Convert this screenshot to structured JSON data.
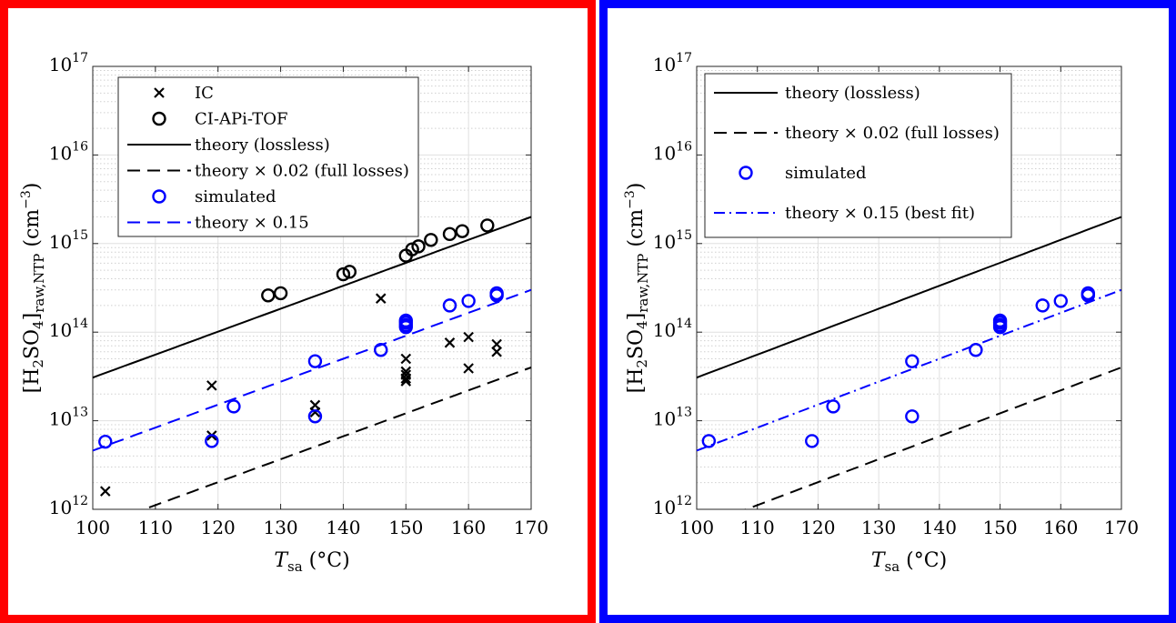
{
  "chart_data": [
    {
      "type": "scatter",
      "frame_color": "#ff0000",
      "xlabel": {
        "main": "T",
        "sub": "sa",
        "unit": "(°C)"
      },
      "ylabel": {
        "main": "[H",
        "sub1": "2",
        "mid": "SO",
        "sub2": "4",
        "close": "]",
        "sub3": "raw,NTP",
        "unit": "(cm",
        "sup": "−3",
        "end": ")"
      },
      "xlim": [
        100,
        170
      ],
      "ylim_log10": [
        12,
        17
      ],
      "y_scale": "log",
      "grid": true,
      "legend_position": "top-left",
      "xticks": [
        "100",
        "110",
        "120",
        "130",
        "140",
        "150",
        "160",
        "170"
      ],
      "xtick_values": [
        100,
        110,
        120,
        130,
        140,
        150,
        160,
        170
      ],
      "yticks": [
        {
          "base": "10",
          "exp": "12"
        },
        {
          "base": "10",
          "exp": "13"
        },
        {
          "base": "10",
          "exp": "14"
        },
        {
          "base": "10",
          "exp": "15"
        },
        {
          "base": "10",
          "exp": "16"
        },
        {
          "base": "10",
          "exp": "17"
        }
      ],
      "ytick_values": [
        12,
        13,
        14,
        15,
        16,
        17
      ],
      "series": [
        {
          "name": "IC",
          "kind": "x-marker",
          "color": "#000000",
          "points": [
            [
              102,
              1600000000000.0
            ],
            [
              119,
              25000000000000.0
            ],
            [
              119,
              6800000000000.0
            ],
            [
              135.5,
              15000000000000.0
            ],
            [
              135.5,
              12500000000000.0
            ],
            [
              146,
              240000000000000.0
            ],
            [
              150,
              50000000000000.0
            ],
            [
              150,
              36000000000000.0
            ],
            [
              150,
              33000000000000.0
            ],
            [
              150,
              30000000000000.0
            ],
            [
              150,
              28000000000000.0
            ],
            [
              157,
              76000000000000.0
            ],
            [
              160,
              88000000000000.0
            ],
            [
              160,
              39000000000000.0
            ],
            [
              164.5,
              73000000000000.0
            ],
            [
              164.5,
              60000000000000.0
            ]
          ]
        },
        {
          "name": "CI-APi-TOF",
          "kind": "circle",
          "color": "#000000",
          "points": [
            [
              128,
              260000000000000.0
            ],
            [
              130,
              275000000000000.0
            ],
            [
              140,
              450000000000000.0
            ],
            [
              141,
              480000000000000.0
            ],
            [
              150,
              730000000000000.0
            ],
            [
              151,
              860000000000000.0
            ],
            [
              152,
              930000000000000.0
            ],
            [
              154,
              1100000000000000.0
            ],
            [
              157,
              1280000000000000.0
            ],
            [
              159,
              1380000000000000.0
            ],
            [
              163,
              1600000000000000.0
            ]
          ]
        },
        {
          "name": "theory (lossless)",
          "kind": "solid-line",
          "color": "#000000"
        },
        {
          "name": "theory × 0.02 (full losses)",
          "kind": "dashed-line",
          "color": "#000000"
        },
        {
          "name": "simulated",
          "kind": "circle",
          "color": "#0000ff",
          "points": [
            [
              102,
              5800000000000.0
            ],
            [
              119,
              5900000000000.0
            ],
            [
              122.5,
              14500000000000.0
            ],
            [
              135.5,
              47000000000000.0
            ],
            [
              135.5,
              11200000000000.0
            ],
            [
              146,
              63000000000000.0
            ],
            [
              150,
              135000000000000.0
            ],
            [
              150,
              128000000000000.0
            ],
            [
              150,
              120000000000000.0
            ],
            [
              150,
              114000000000000.0
            ],
            [
              157,
              200000000000000.0
            ],
            [
              160,
              225000000000000.0
            ],
            [
              164.5,
              275000000000000.0
            ],
            [
              164.5,
              260000000000000.0
            ]
          ]
        },
        {
          "name": "theory × 0.15",
          "kind": "dashed-line",
          "color": "#0000ff"
        }
      ],
      "curves": {
        "theory": {
          "x": [
            100,
            170
          ],
          "log10_y": [
            13.487,
            15.301
          ]
        },
        "full_losses_factor": 0.02,
        "fit_factor": 0.15
      },
      "legend": [
        "IC",
        "CI-APi-TOF",
        "theory (lossless)",
        "theory × 0.02 (full losses)",
        "simulated",
        "theory × 0.15"
      ]
    },
    {
      "type": "scatter",
      "frame_color": "#0000ff",
      "xlabel": {
        "main": "T",
        "sub": "sa",
        "unit": "(°C)"
      },
      "ylabel": {
        "main": "[H",
        "sub1": "2",
        "mid": "SO",
        "sub2": "4",
        "close": "]",
        "sub3": "raw,NTP",
        "unit": "(cm",
        "sup": "−3",
        "end": ")"
      },
      "xlim": [
        100,
        170
      ],
      "ylim_log10": [
        12,
        17
      ],
      "y_scale": "log",
      "grid": true,
      "legend_position": "top-left",
      "xticks": [
        "100",
        "110",
        "120",
        "130",
        "140",
        "150",
        "160",
        "170"
      ],
      "xtick_values": [
        100,
        110,
        120,
        130,
        140,
        150,
        160,
        170
      ],
      "yticks": [
        {
          "base": "10",
          "exp": "12"
        },
        {
          "base": "10",
          "exp": "13"
        },
        {
          "base": "10",
          "exp": "14"
        },
        {
          "base": "10",
          "exp": "15"
        },
        {
          "base": "10",
          "exp": "16"
        },
        {
          "base": "10",
          "exp": "17"
        }
      ],
      "ytick_values": [
        12,
        13,
        14,
        15,
        16,
        17
      ],
      "series": [
        {
          "name": "theory (lossless)",
          "kind": "solid-line",
          "color": "#000000"
        },
        {
          "name": "theory × 0.02 (full losses)",
          "kind": "dashed-line",
          "color": "#000000"
        },
        {
          "name": "simulated",
          "kind": "circle",
          "color": "#0000ff",
          "points": [
            [
              102,
              5900000000000.0
            ],
            [
              119,
              5900000000000.0
            ],
            [
              122.5,
              14500000000000.0
            ],
            [
              135.5,
              47000000000000.0
            ],
            [
              135.5,
              11200000000000.0
            ],
            [
              146,
              63000000000000.0
            ],
            [
              150,
              135000000000000.0
            ],
            [
              150,
              128000000000000.0
            ],
            [
              150,
              120000000000000.0
            ],
            [
              150,
              114000000000000.0
            ],
            [
              157,
              200000000000000.0
            ],
            [
              160,
              225000000000000.0
            ],
            [
              164.5,
              275000000000000.0
            ],
            [
              164.5,
              260000000000000.0
            ]
          ]
        },
        {
          "name": "theory × 0.15 (best fit)",
          "kind": "dashdot-line",
          "color": "#0000ff"
        }
      ],
      "curves": {
        "theory": {
          "x": [
            100,
            170
          ],
          "log10_y": [
            13.487,
            15.301
          ]
        },
        "full_losses_factor": 0.02,
        "fit_factor": 0.15
      },
      "legend": [
        "theory (lossless)",
        "theory × 0.02 (full losses)",
        "simulated",
        "theory × 0.15 (best fit)"
      ]
    }
  ]
}
